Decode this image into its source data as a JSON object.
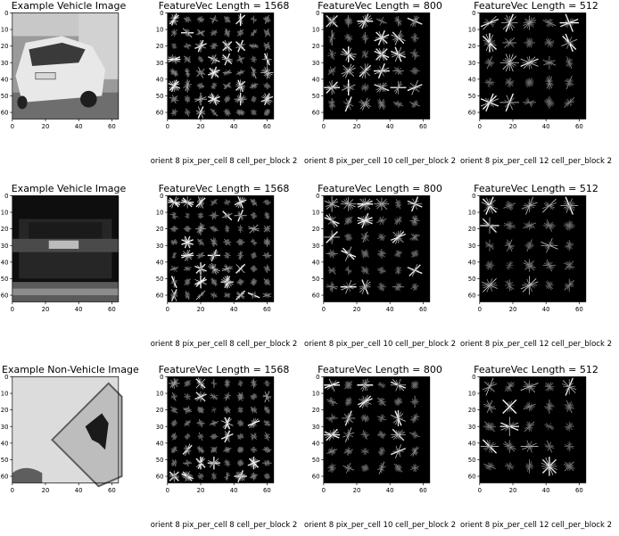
{
  "chart_data": [
    {
      "type": "image",
      "row": 0,
      "col": 0,
      "content": "vehicle-photo",
      "title": "Example Vehicle Image",
      "xlabel": "",
      "xticks": [
        0,
        20,
        40,
        60
      ],
      "yticks": [
        0,
        10,
        20,
        30,
        40,
        50,
        60
      ],
      "xlim": [
        0,
        64
      ],
      "ylim": [
        64,
        0
      ]
    },
    {
      "type": "image",
      "row": 0,
      "col": 1,
      "content": "hog",
      "title": "FeatureVec Length = 1568",
      "xlabel": "orient 8 pix_per_cell 8 cell_per_block 2",
      "orient": 8,
      "pix_per_cell": 8,
      "cell_per_block": 2,
      "feature_length": 1568,
      "xticks": [
        0,
        20,
        40,
        60
      ],
      "yticks": [
        0,
        10,
        20,
        30,
        40,
        50,
        60
      ],
      "xlim": [
        0,
        64
      ],
      "ylim": [
        64,
        0
      ]
    },
    {
      "type": "image",
      "row": 0,
      "col": 2,
      "content": "hog",
      "title": "FeatureVec Length = 800",
      "xlabel": "orient 8 pix_per_cell 10 cell_per_block 2",
      "orient": 8,
      "pix_per_cell": 10,
      "cell_per_block": 2,
      "feature_length": 800,
      "xticks": [
        0,
        20,
        40,
        60
      ],
      "yticks": [
        0,
        10,
        20,
        30,
        40,
        50,
        60
      ],
      "xlim": [
        0,
        64
      ],
      "ylim": [
        64,
        0
      ]
    },
    {
      "type": "image",
      "row": 0,
      "col": 3,
      "content": "hog",
      "title": "FeatureVec Length = 512",
      "xlabel": "orient 8 pix_per_cell 12 cell_per_block 2",
      "orient": 8,
      "pix_per_cell": 12,
      "cell_per_block": 2,
      "feature_length": 512,
      "xticks": [
        0,
        20,
        40,
        60
      ],
      "yticks": [
        0,
        10,
        20,
        30,
        40,
        50,
        60
      ],
      "xlim": [
        0,
        64
      ],
      "ylim": [
        64,
        0
      ]
    },
    {
      "type": "image",
      "row": 1,
      "col": 0,
      "content": "vehicle-dark",
      "title": "Example Vehicle Image",
      "xlabel": "",
      "xticks": [
        0,
        20,
        40,
        60
      ],
      "yticks": [
        0,
        10,
        20,
        30,
        40,
        50,
        60
      ],
      "xlim": [
        0,
        64
      ],
      "ylim": [
        64,
        0
      ]
    },
    {
      "type": "image",
      "row": 1,
      "col": 1,
      "content": "hog",
      "title": "FeatureVec Length = 1568",
      "xlabel": "orient 8 pix_per_cell 8 cell_per_block 2",
      "orient": 8,
      "pix_per_cell": 8,
      "cell_per_block": 2,
      "feature_length": 1568,
      "xticks": [
        0,
        20,
        40,
        60
      ],
      "yticks": [
        0,
        10,
        20,
        30,
        40,
        50,
        60
      ],
      "xlim": [
        0,
        64
      ],
      "ylim": [
        64,
        0
      ]
    },
    {
      "type": "image",
      "row": 1,
      "col": 2,
      "content": "hog",
      "title": "FeatureVec Length = 800",
      "xlabel": "orient 8 pix_per_cell 10 cell_per_block 2",
      "orient": 8,
      "pix_per_cell": 10,
      "cell_per_block": 2,
      "feature_length": 800,
      "xticks": [
        0,
        20,
        40,
        60
      ],
      "yticks": [
        0,
        10,
        20,
        30,
        40,
        50,
        60
      ],
      "xlim": [
        0,
        64
      ],
      "ylim": [
        64,
        0
      ]
    },
    {
      "type": "image",
      "row": 1,
      "col": 3,
      "content": "hog",
      "title": "FeatureVec Length = 512",
      "xlabel": "orient 8 pix_per_cell 12 cell_per_block 2",
      "orient": 8,
      "pix_per_cell": 12,
      "cell_per_block": 2,
      "feature_length": 512,
      "xticks": [
        0,
        20,
        40,
        60
      ],
      "yticks": [
        0,
        10,
        20,
        30,
        40,
        50,
        60
      ],
      "xlim": [
        0,
        64
      ],
      "ylim": [
        64,
        0
      ]
    },
    {
      "type": "image",
      "row": 2,
      "col": 0,
      "content": "sign-photo",
      "title": "Example Non-Vehicle Image",
      "xlabel": "",
      "xticks": [
        0,
        20,
        40,
        60
      ],
      "yticks": [
        0,
        10,
        20,
        30,
        40,
        50,
        60
      ],
      "xlim": [
        0,
        64
      ],
      "ylim": [
        64,
        0
      ]
    },
    {
      "type": "image",
      "row": 2,
      "col": 1,
      "content": "hog",
      "title": "FeatureVec Length = 1568",
      "xlabel": "orient 8 pix_per_cell 8 cell_per_block 2",
      "orient": 8,
      "pix_per_cell": 8,
      "cell_per_block": 2,
      "feature_length": 1568,
      "xticks": [
        0,
        20,
        40,
        60
      ],
      "yticks": [
        0,
        10,
        20,
        30,
        40,
        50,
        60
      ],
      "xlim": [
        0,
        64
      ],
      "ylim": [
        64,
        0
      ]
    },
    {
      "type": "image",
      "row": 2,
      "col": 2,
      "content": "hog",
      "title": "FeatureVec Length = 800",
      "xlabel": "orient 8 pix_per_cell 10 cell_per_block 2",
      "orient": 8,
      "pix_per_cell": 10,
      "cell_per_block": 2,
      "feature_length": 800,
      "xticks": [
        0,
        20,
        40,
        60
      ],
      "yticks": [
        0,
        10,
        20,
        30,
        40,
        50,
        60
      ],
      "xlim": [
        0,
        64
      ],
      "ylim": [
        64,
        0
      ]
    },
    {
      "type": "image",
      "row": 2,
      "col": 3,
      "content": "hog",
      "title": "FeatureVec Length = 512",
      "xlabel": "orient 8 pix_per_cell 12 cell_per_block 2",
      "orient": 8,
      "pix_per_cell": 12,
      "cell_per_block": 2,
      "feature_length": 512,
      "xticks": [
        0,
        20,
        40,
        60
      ],
      "yticks": [
        0,
        10,
        20,
        30,
        40,
        50,
        60
      ],
      "xlim": [
        0,
        64
      ],
      "ylim": [
        64,
        0
      ]
    }
  ]
}
